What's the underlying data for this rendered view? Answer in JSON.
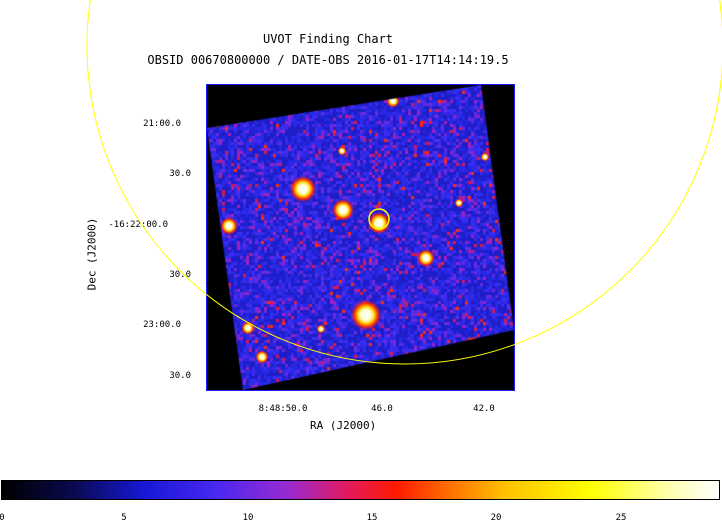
{
  "chart": {
    "title": "UVOT Finding Chart",
    "subtitle": "OBSID 00670800000 / DATE-OBS 2016-01-17T14:14:19.5",
    "xlabel": "RA (J2000)",
    "ylabel": "Dec (J2000)",
    "ra_ticks": [
      "8:48:50.0",
      "46.0",
      "42.0"
    ],
    "dec_ticks": [
      "21:00.0",
      "30.0",
      "-16:22:00.0",
      "30.0",
      "23:00.0",
      "30.0"
    ],
    "colorbar_ticks": [
      "0",
      "5",
      "10",
      "15",
      "20",
      "25"
    ],
    "colorbar_range": [
      0,
      29
    ],
    "colormap": "black-blue-purple-red-orange-yellow-white",
    "target_marker_color": "#ffff00",
    "frame_color": "#1a1aff"
  }
}
